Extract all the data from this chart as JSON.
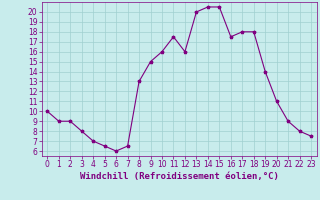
{
  "x": [
    0,
    1,
    2,
    3,
    4,
    5,
    6,
    7,
    8,
    9,
    10,
    11,
    12,
    13,
    14,
    15,
    16,
    17,
    18,
    19,
    20,
    21,
    22,
    23
  ],
  "y": [
    10,
    9,
    9,
    8,
    7,
    6.5,
    6,
    6.5,
    13,
    15,
    16,
    17.5,
    16,
    20,
    20.5,
    20.5,
    17.5,
    18,
    18,
    14,
    11,
    9,
    8,
    7.5
  ],
  "line_color": "#800080",
  "marker": "*",
  "marker_color": "#800080",
  "bg_color": "#c8ecec",
  "grid_color": "#a0d0d0",
  "xlabel": "Windchill (Refroidissement éolien,°C)",
  "xlabel_color": "#800080",
  "xlabel_fontsize": 6.5,
  "tick_color": "#800080",
  "tick_fontsize": 5.5,
  "ylim": [
    5.5,
    21
  ],
  "xlim": [
    -0.5,
    23.5
  ],
  "yticks": [
    6,
    7,
    8,
    9,
    10,
    11,
    12,
    13,
    14,
    15,
    16,
    17,
    18,
    19,
    20
  ],
  "xticks": [
    0,
    1,
    2,
    3,
    4,
    5,
    6,
    7,
    8,
    9,
    10,
    11,
    12,
    13,
    14,
    15,
    16,
    17,
    18,
    19,
    20,
    21,
    22,
    23
  ]
}
